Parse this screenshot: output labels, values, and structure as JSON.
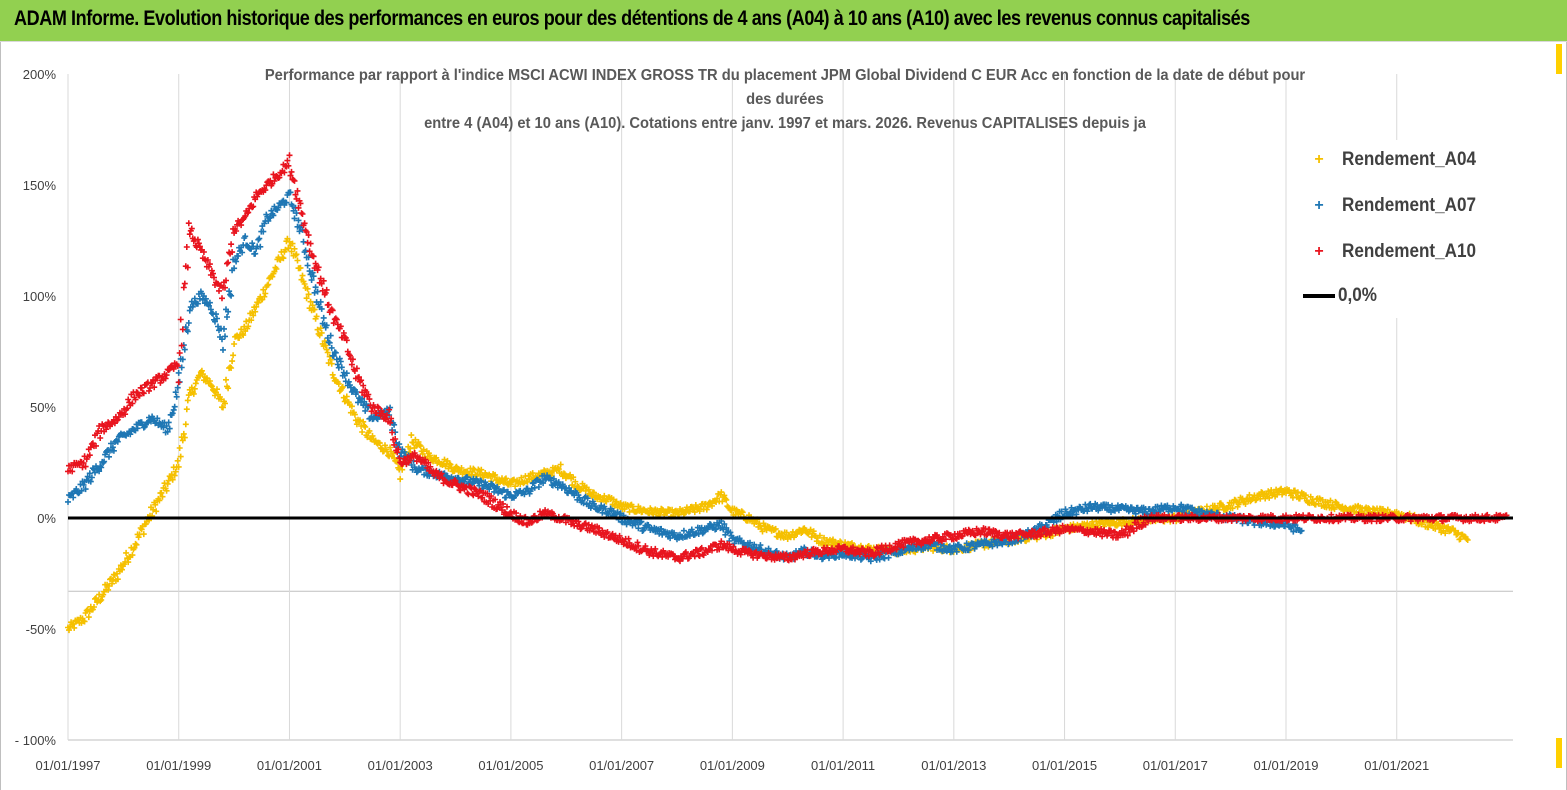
{
  "banner": {
    "title": "ADAM Informe. Evolution historique des performances en euros pour des détentions de 4 ans (A04) à 10 ans (A10) avec les revenus connus capitalisés"
  },
  "chart_data": {
    "type": "scatter",
    "title_lines": [
      "Performance par rapport à l'indice MSCI ACWI INDEX GROSS TR  du placement JPM Global Dividend C EUR Acc en fonction de la date de début pour",
      "des durées",
      "entre 4 (A04) et 10 ans (A10). Cotations entre janv. 1997 et mars. 2026. Revenus CAPITALISES depuis ja"
    ],
    "y_ticks": [
      "200%",
      "150%",
      "100%",
      "50%",
      "0%",
      "-50%",
      "- 100%"
    ],
    "y_tick_values": [
      200,
      150,
      100,
      50,
      0,
      -50,
      -100
    ],
    "x_ticks": [
      "01/01/1997",
      "01/01/1999",
      "01/01/2001",
      "01/01/2003",
      "01/01/2005",
      "01/01/2007",
      "01/01/2009",
      "01/01/2011",
      "01/01/2013",
      "01/01/2015",
      "01/01/2017",
      "01/01/2019",
      "01/01/2021"
    ],
    "x_tick_values": [
      1997,
      1999,
      2001,
      2003,
      2005,
      2007,
      2009,
      2011,
      2013,
      2015,
      2017,
      2019,
      2021
    ],
    "xlim": [
      1997,
      2023.1
    ],
    "ylim": [
      -100,
      200
    ],
    "grid": "vertical",
    "legend_position": "right",
    "series": [
      {
        "name": "Rendement_A04",
        "color": "#f5c000",
        "marker": "+",
        "points": [
          [
            1997.0,
            -50
          ],
          [
            1997.3,
            -45
          ],
          [
            1997.6,
            -35
          ],
          [
            1997.9,
            -25
          ],
          [
            1998.2,
            -12
          ],
          [
            1998.5,
            2
          ],
          [
            1998.8,
            15
          ],
          [
            1999.0,
            25
          ],
          [
            1999.2,
            55
          ],
          [
            1999.4,
            65
          ],
          [
            1999.6,
            60
          ],
          [
            1999.8,
            50
          ],
          [
            2000.0,
            80
          ],
          [
            2000.2,
            85
          ],
          [
            2000.4,
            95
          ],
          [
            2000.6,
            105
          ],
          [
            2000.8,
            115
          ],
          [
            2001.0,
            125
          ],
          [
            2001.2,
            110
          ],
          [
            2001.4,
            95
          ],
          [
            2001.6,
            80
          ],
          [
            2001.8,
            65
          ],
          [
            2002.0,
            55
          ],
          [
            2002.2,
            45
          ],
          [
            2002.5,
            35
          ],
          [
            2002.8,
            30
          ],
          [
            2003.0,
            20
          ],
          [
            2003.2,
            35
          ],
          [
            2003.5,
            28
          ],
          [
            2003.8,
            25
          ],
          [
            2004.0,
            22
          ],
          [
            2004.5,
            20
          ],
          [
            2005.0,
            15
          ],
          [
            2005.3,
            18
          ],
          [
            2005.6,
            20
          ],
          [
            2005.9,
            22
          ],
          [
            2006.2,
            15
          ],
          [
            2006.5,
            10
          ],
          [
            2006.8,
            8
          ],
          [
            2007.0,
            5
          ],
          [
            2007.5,
            3
          ],
          [
            2008.0,
            2
          ],
          [
            2008.5,
            5
          ],
          [
            2008.8,
            10
          ],
          [
            2009.0,
            3
          ],
          [
            2009.3,
            0
          ],
          [
            2009.6,
            -5
          ],
          [
            2010.0,
            -8
          ],
          [
            2010.3,
            -5
          ],
          [
            2010.6,
            -10
          ],
          [
            2011.0,
            -12
          ],
          [
            2011.5,
            -14
          ],
          [
            2012.0,
            -15
          ],
          [
            2012.5,
            -13
          ],
          [
            2013.0,
            -14
          ],
          [
            2013.5,
            -12
          ],
          [
            2014.0,
            -10
          ],
          [
            2014.5,
            -8
          ],
          [
            2015.0,
            -5
          ],
          [
            2015.5,
            -3
          ],
          [
            2016.0,
            -2
          ],
          [
            2016.5,
            -1
          ],
          [
            2017.0,
            0
          ],
          [
            2017.5,
            3
          ],
          [
            2018.0,
            6
          ],
          [
            2018.5,
            10
          ],
          [
            2019.0,
            12
          ],
          [
            2019.5,
            8
          ],
          [
            2020.0,
            5
          ],
          [
            2020.5,
            3
          ],
          [
            2021.0,
            2
          ],
          [
            2021.5,
            -2
          ],
          [
            2022.0,
            -6
          ],
          [
            2022.3,
            -10
          ]
        ]
      },
      {
        "name": "Rendement_A07",
        "color": "#1f77b4",
        "marker": "+",
        "points": [
          [
            1997.0,
            8
          ],
          [
            1997.3,
            15
          ],
          [
            1997.6,
            25
          ],
          [
            1997.9,
            35
          ],
          [
            1998.2,
            40
          ],
          [
            1998.5,
            45
          ],
          [
            1998.8,
            40
          ],
          [
            1999.0,
            60
          ],
          [
            1999.2,
            95
          ],
          [
            1999.4,
            100
          ],
          [
            1999.6,
            95
          ],
          [
            1999.8,
            80
          ],
          [
            2000.0,
            115
          ],
          [
            2000.2,
            125
          ],
          [
            2000.4,
            120
          ],
          [
            2000.6,
            135
          ],
          [
            2000.8,
            140
          ],
          [
            2001.0,
            145
          ],
          [
            2001.2,
            130
          ],
          [
            2001.4,
            110
          ],
          [
            2001.6,
            90
          ],
          [
            2001.8,
            75
          ],
          [
            2002.0,
            65
          ],
          [
            2002.2,
            55
          ],
          [
            2002.5,
            45
          ],
          [
            2002.8,
            48
          ],
          [
            2003.0,
            30
          ],
          [
            2003.3,
            22
          ],
          [
            2003.6,
            20
          ],
          [
            2004.0,
            18
          ],
          [
            2004.5,
            15
          ],
          [
            2005.0,
            10
          ],
          [
            2005.3,
            12
          ],
          [
            2005.6,
            18
          ],
          [
            2005.9,
            15
          ],
          [
            2006.2,
            10
          ],
          [
            2006.5,
            5
          ],
          [
            2006.8,
            3
          ],
          [
            2007.0,
            0
          ],
          [
            2007.5,
            -5
          ],
          [
            2008.0,
            -8
          ],
          [
            2008.5,
            -5
          ],
          [
            2008.8,
            -3
          ],
          [
            2009.0,
            -10
          ],
          [
            2009.3,
            -12
          ],
          [
            2009.6,
            -15
          ],
          [
            2010.0,
            -18
          ],
          [
            2010.3,
            -15
          ],
          [
            2010.6,
            -17
          ],
          [
            2011.0,
            -16
          ],
          [
            2011.5,
            -18
          ],
          [
            2012.0,
            -15
          ],
          [
            2012.5,
            -12
          ],
          [
            2013.0,
            -14
          ],
          [
            2013.5,
            -12
          ],
          [
            2014.0,
            -10
          ],
          [
            2014.5,
            -6
          ],
          [
            2015.0,
            2
          ],
          [
            2015.5,
            5
          ],
          [
            2016.0,
            4
          ],
          [
            2016.5,
            3
          ],
          [
            2017.0,
            5
          ],
          [
            2017.5,
            2
          ],
          [
            2018.0,
            0
          ],
          [
            2018.5,
            -2
          ],
          [
            2019.0,
            -3
          ],
          [
            2019.3,
            -6
          ]
        ]
      },
      {
        "name": "Rendement_A10",
        "color": "#e8141e",
        "marker": "+",
        "points": [
          [
            1997.0,
            22
          ],
          [
            1997.3,
            25
          ],
          [
            1997.6,
            40
          ],
          [
            1997.9,
            45
          ],
          [
            1998.2,
            55
          ],
          [
            1998.5,
            60
          ],
          [
            1998.8,
            65
          ],
          [
            1999.0,
            70
          ],
          [
            1999.2,
            130
          ],
          [
            1999.4,
            120
          ],
          [
            1999.6,
            110
          ],
          [
            1999.8,
            100
          ],
          [
            2000.0,
            130
          ],
          [
            2000.2,
            135
          ],
          [
            2000.4,
            145
          ],
          [
            2000.6,
            150
          ],
          [
            2000.8,
            155
          ],
          [
            2001.0,
            160
          ],
          [
            2001.2,
            140
          ],
          [
            2001.4,
            120
          ],
          [
            2001.6,
            105
          ],
          [
            2001.8,
            90
          ],
          [
            2002.0,
            80
          ],
          [
            2002.2,
            65
          ],
          [
            2002.5,
            50
          ],
          [
            2002.8,
            45
          ],
          [
            2003.0,
            25
          ],
          [
            2003.3,
            28
          ],
          [
            2003.6,
            20
          ],
          [
            2004.0,
            15
          ],
          [
            2004.5,
            10
          ],
          [
            2005.0,
            2
          ],
          [
            2005.3,
            -2
          ],
          [
            2005.6,
            2
          ],
          [
            2005.9,
            0
          ],
          [
            2006.2,
            -3
          ],
          [
            2006.5,
            -5
          ],
          [
            2006.8,
            -8
          ],
          [
            2007.0,
            -10
          ],
          [
            2007.5,
            -15
          ],
          [
            2008.0,
            -18
          ],
          [
            2008.5,
            -15
          ],
          [
            2008.8,
            -12
          ],
          [
            2009.0,
            -14
          ],
          [
            2009.3,
            -16
          ],
          [
            2009.6,
            -17
          ],
          [
            2010.0,
            -18
          ],
          [
            2010.3,
            -16
          ],
          [
            2010.6,
            -15
          ],
          [
            2011.0,
            -14
          ],
          [
            2011.5,
            -16
          ],
          [
            2012.0,
            -12
          ],
          [
            2012.5,
            -10
          ],
          [
            2013.0,
            -8
          ],
          [
            2013.5,
            -6
          ],
          [
            2014.0,
            -8
          ],
          [
            2014.5,
            -7
          ],
          [
            2015.0,
            -5
          ],
          [
            2015.5,
            -6
          ],
          [
            2016.0,
            -8
          ],
          [
            2016.5,
            0
          ],
          [
            2017.0,
            0
          ],
          [
            2018.0,
            0
          ],
          [
            2019.0,
            0
          ],
          [
            2020.0,
            0
          ],
          [
            2021.0,
            0
          ],
          [
            2022.0,
            0
          ],
          [
            2023.0,
            0
          ]
        ]
      }
    ],
    "reference_line": {
      "name": "0,0%",
      "y": 0,
      "color": "#000000"
    }
  }
}
